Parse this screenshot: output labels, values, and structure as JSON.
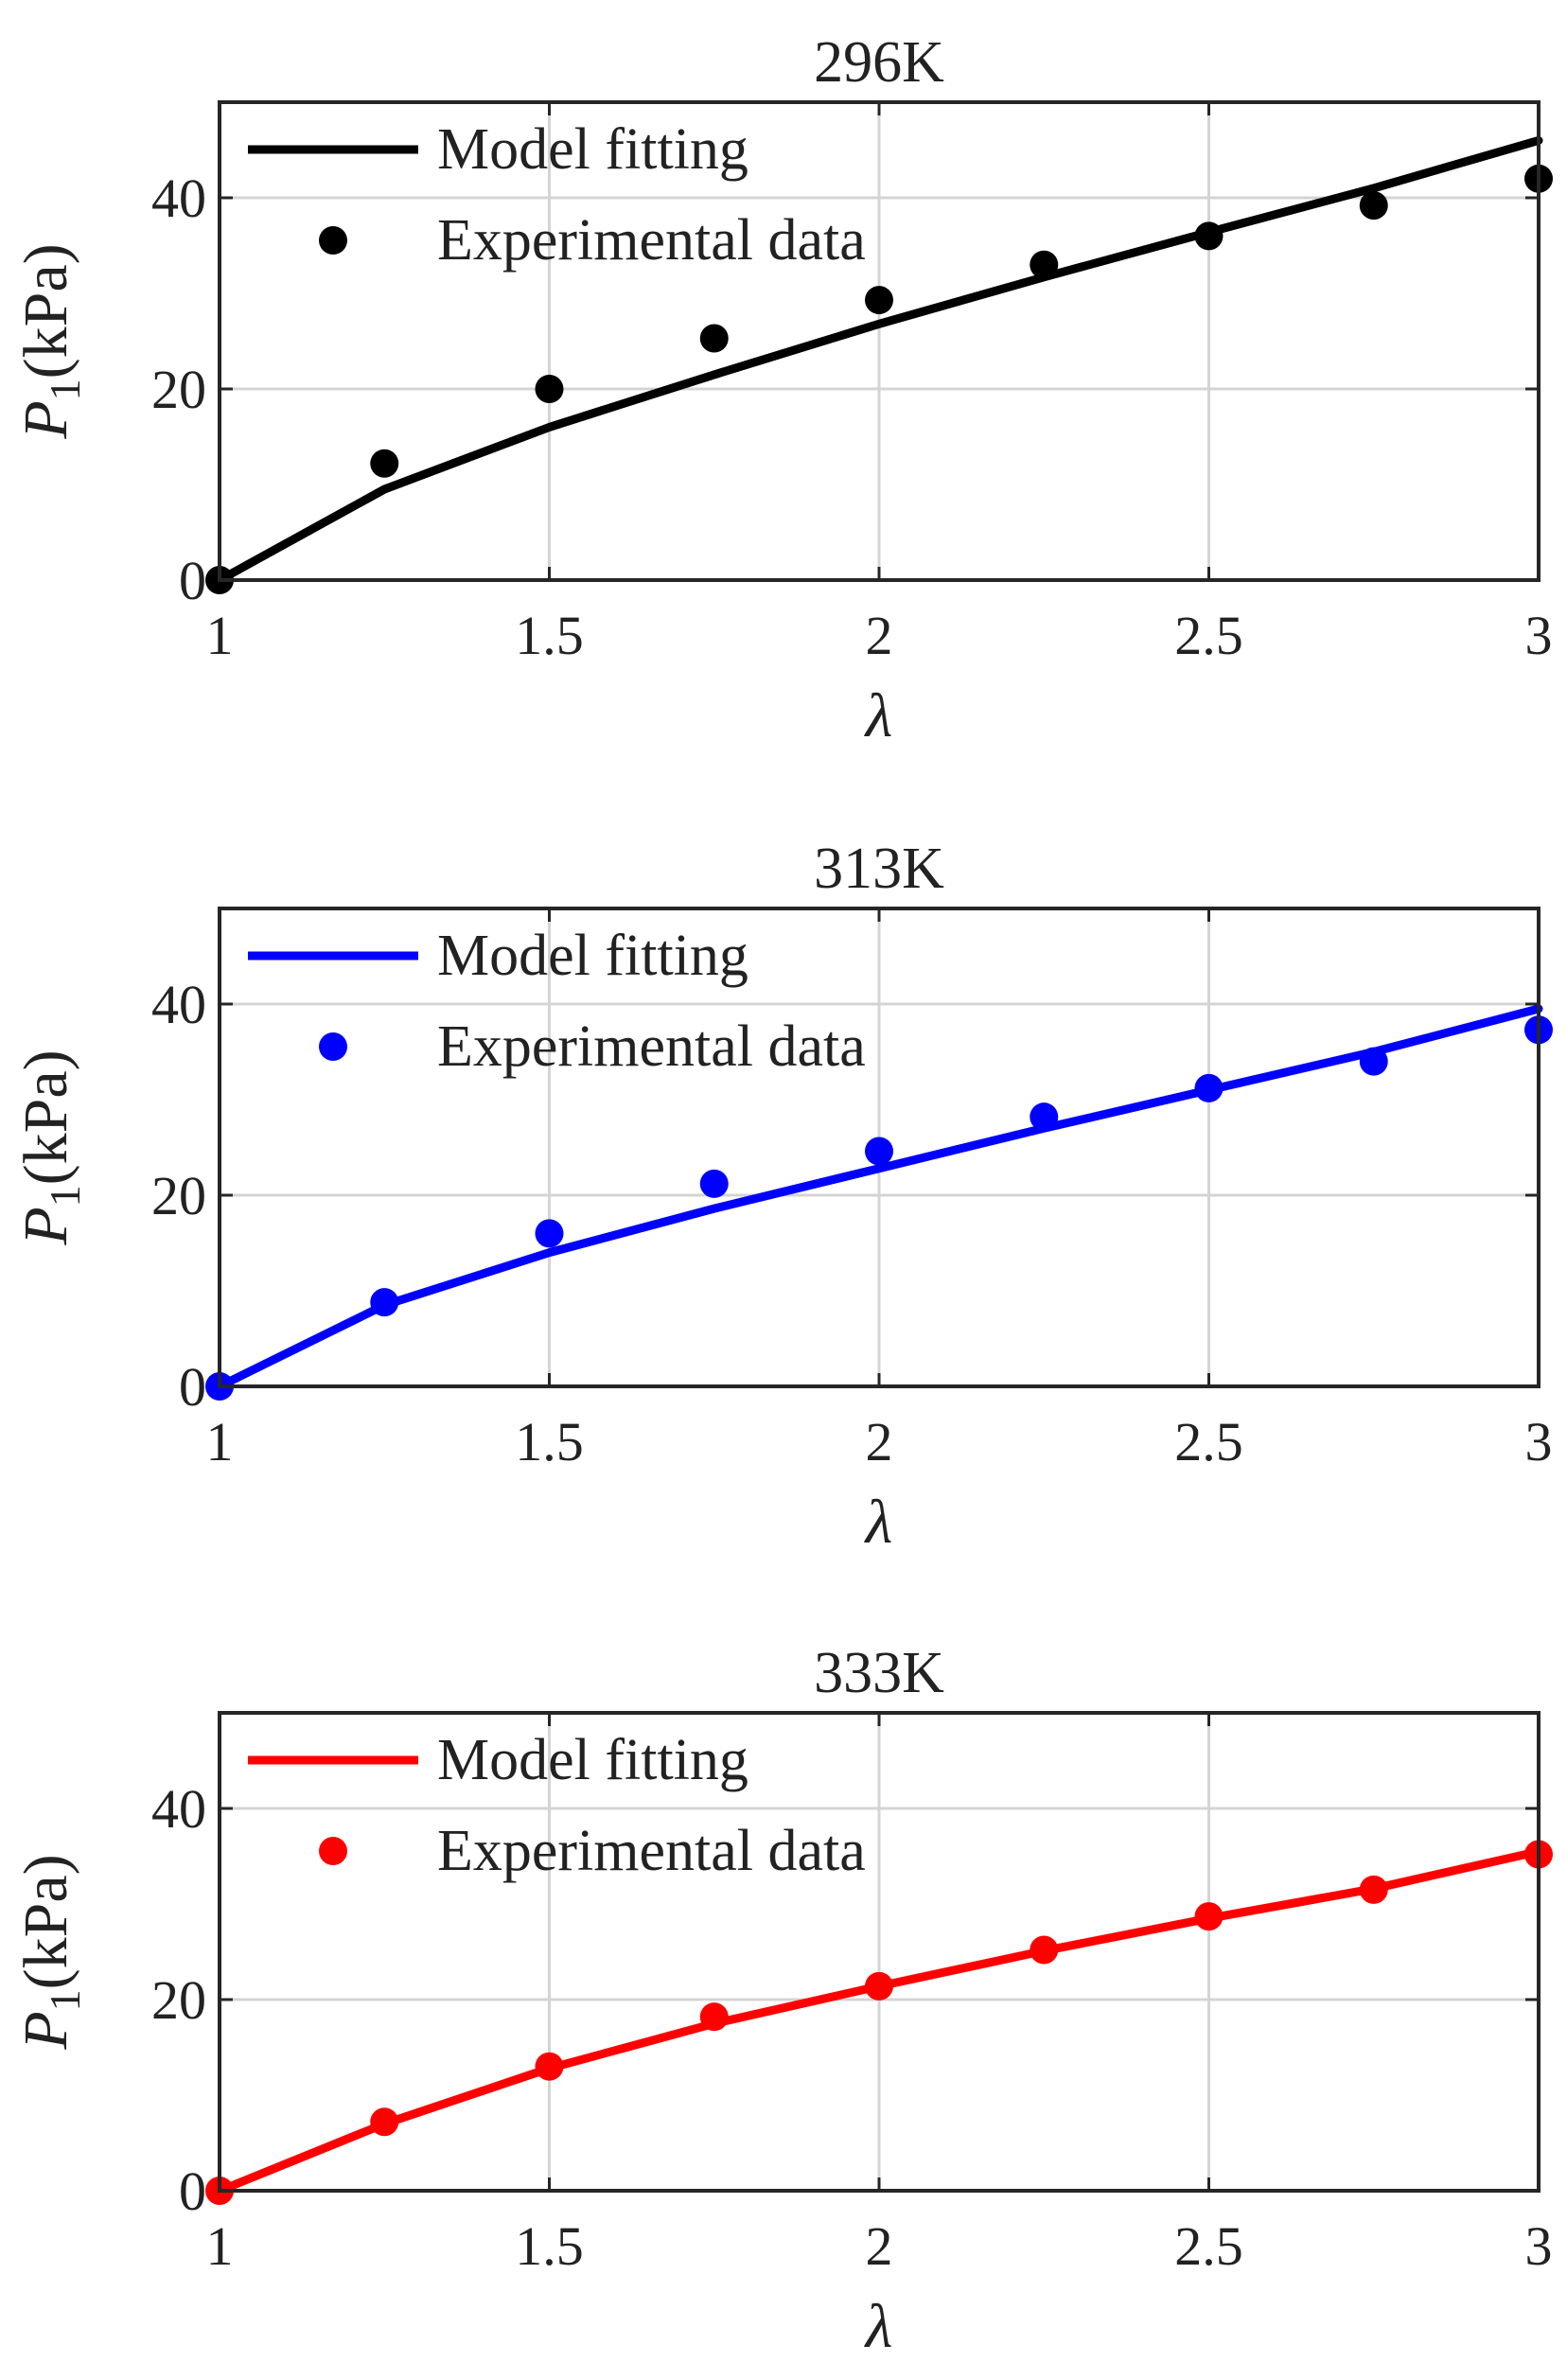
{
  "chart_data": [
    {
      "type": "scatter",
      "title": "296K",
      "xlabel": "λ",
      "ylabel_symbol": "P",
      "ylabel_subscript": "1",
      "ylabel_unit": "(kPa)",
      "xlim": [
        1,
        3
      ],
      "ylim": [
        0,
        50
      ],
      "xticks": [
        "1",
        "1.5",
        "2",
        "2.5",
        "3"
      ],
      "yticks": [
        "0",
        "20",
        "40"
      ],
      "grid": true,
      "legend_position": "top-left",
      "color": "#000000",
      "series": [
        {
          "name": "Model fitting",
          "kind": "line",
          "x": [
            1.0,
            1.25,
            1.5,
            1.75,
            2.0,
            2.25,
            2.5,
            2.75,
            3.0
          ],
          "values": [
            0,
            9.5,
            16.0,
            21.5,
            26.8,
            31.7,
            36.4,
            41.0,
            46.0
          ]
        },
        {
          "name": "Experimental data",
          "kind": "scatter",
          "x": [
            1.0,
            1.25,
            1.5,
            1.75,
            2.0,
            2.25,
            2.5,
            2.75,
            3.0
          ],
          "values": [
            0,
            12.2,
            20.0,
            25.3,
            29.3,
            33.0,
            36.0,
            39.2,
            42.0
          ]
        }
      ]
    },
    {
      "type": "scatter",
      "title": "313K",
      "xlabel": "λ",
      "ylabel_symbol": "P",
      "ylabel_subscript": "1",
      "ylabel_unit": "(kPa)",
      "xlim": [
        1,
        3
      ],
      "ylim": [
        0,
        50
      ],
      "xticks": [
        "1",
        "1.5",
        "2",
        "2.5",
        "3"
      ],
      "yticks": [
        "0",
        "20",
        "40"
      ],
      "grid": true,
      "legend_position": "top-left",
      "color": "#0000ff",
      "series": [
        {
          "name": "Model fitting",
          "kind": "line",
          "x": [
            1.0,
            1.25,
            1.5,
            1.75,
            2.0,
            2.25,
            2.5,
            2.75,
            3.0
          ],
          "values": [
            0,
            8.5,
            14.0,
            18.6,
            22.8,
            27.0,
            31.0,
            35.0,
            39.5
          ]
        },
        {
          "name": "Experimental data",
          "kind": "scatter",
          "x": [
            1.0,
            1.25,
            1.5,
            1.75,
            2.0,
            2.25,
            2.5,
            2.75,
            3.0
          ],
          "values": [
            0,
            8.8,
            16.0,
            21.2,
            24.6,
            28.2,
            31.2,
            34.0,
            37.3
          ]
        }
      ]
    },
    {
      "type": "scatter",
      "title": "333K",
      "xlabel": "λ",
      "ylabel_symbol": "P",
      "ylabel_subscript": "1",
      "ylabel_unit": "(kPa)",
      "xlim": [
        1,
        3
      ],
      "ylim": [
        0,
        50
      ],
      "xticks": [
        "1",
        "1.5",
        "2",
        "2.5",
        "3"
      ],
      "yticks": [
        "0",
        "20",
        "40"
      ],
      "grid": true,
      "legend_position": "top-left",
      "color": "#ff0000",
      "series": [
        {
          "name": "Model fitting",
          "kind": "line",
          "x": [
            1.0,
            1.25,
            1.5,
            1.75,
            2.0,
            2.25,
            2.5,
            2.75,
            3.0
          ],
          "values": [
            0,
            7.0,
            12.8,
            17.5,
            21.4,
            25.1,
            28.5,
            31.6,
            35.5
          ]
        },
        {
          "name": "Experimental data",
          "kind": "scatter",
          "x": [
            1.0,
            1.25,
            1.5,
            1.75,
            2.0,
            2.25,
            2.5,
            2.75,
            3.0
          ],
          "values": [
            0,
            7.2,
            13.0,
            18.2,
            21.4,
            25.2,
            28.7,
            31.5,
            35.2
          ]
        }
      ]
    }
  ]
}
